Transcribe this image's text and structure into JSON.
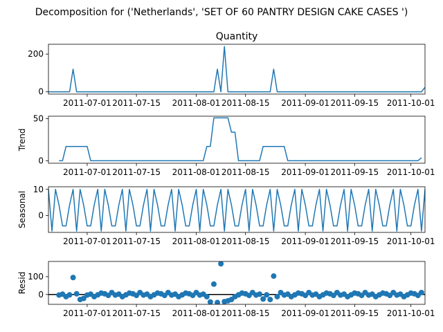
{
  "chart_data": {
    "type": "line",
    "suptitle": "Decomposition for ('Netherlands', 'SET OF 60 PANTRY DESIGN CAKE CASES ')",
    "x_start": "2011-06-20",
    "x_end": "2011-10-05",
    "x_ticks": [
      "2011-07-01",
      "2011-07-15",
      "2011-08-01",
      "2011-08-15",
      "2011-09-01",
      "2011-09-15",
      "2011-10-01"
    ],
    "colors": {
      "line": "#1f77b4",
      "marker": "#1f77b4",
      "zero_line": "#000000"
    },
    "panels": [
      {
        "key": "observed",
        "kind": "line",
        "title": "Quantity",
        "ylabel": "",
        "yticks": [
          0,
          200
        ],
        "ylim": [
          -12,
          252
        ],
        "points": [
          [
            "2011-06-20",
            0
          ],
          [
            "2011-06-26",
            0
          ],
          [
            "2011-06-27",
            120
          ],
          [
            "2011-06-28",
            0
          ],
          [
            "2011-08-06",
            0
          ],
          [
            "2011-08-07",
            120
          ],
          [
            "2011-08-08",
            0
          ],
          [
            "2011-08-09",
            240
          ],
          [
            "2011-08-10",
            0
          ],
          [
            "2011-08-22",
            0
          ],
          [
            "2011-08-23",
            120
          ],
          [
            "2011-08-24",
            0
          ],
          [
            "2011-10-04",
            0
          ],
          [
            "2011-10-05",
            24
          ]
        ]
      },
      {
        "key": "trend",
        "kind": "line",
        "title": "",
        "ylabel": "Trend",
        "yticks": [
          0,
          50
        ],
        "ylim": [
          -3,
          53
        ],
        "points": [
          [
            "2011-06-23",
            0
          ],
          [
            "2011-06-24",
            0
          ],
          [
            "2011-06-25",
            17
          ],
          [
            "2011-06-26",
            17
          ],
          [
            "2011-07-01",
            17
          ],
          [
            "2011-07-02",
            0
          ],
          [
            "2011-08-03",
            0
          ],
          [
            "2011-08-04",
            17
          ],
          [
            "2011-08-05",
            17
          ],
          [
            "2011-08-06",
            51
          ],
          [
            "2011-08-10",
            51
          ],
          [
            "2011-08-11",
            34
          ],
          [
            "2011-08-12",
            34
          ],
          [
            "2011-08-13",
            0
          ],
          [
            "2011-08-19",
            0
          ],
          [
            "2011-08-20",
            17
          ],
          [
            "2011-08-26",
            17
          ],
          [
            "2011-08-27",
            0
          ],
          [
            "2011-10-03",
            0
          ],
          [
            "2011-10-04",
            3.5
          ]
        ]
      },
      {
        "key": "seasonal",
        "kind": "line",
        "title": "",
        "ylabel": "Seasonal",
        "yticks": [
          0,
          10
        ],
        "ylim": [
          -6.5,
          11
        ],
        "pattern": [
          4,
          10,
          -6,
          10,
          4,
          -4,
          -4
        ],
        "pattern_start": "2011-06-19"
      },
      {
        "key": "resid",
        "kind": "scatter",
        "title": "",
        "ylabel": "Resid",
        "yticks": [
          0,
          100
        ],
        "ylim": [
          -55,
          185
        ],
        "outliers": [
          [
            "2011-06-27",
            95
          ],
          [
            "2011-06-29",
            -28
          ],
          [
            "2011-06-30",
            -22
          ],
          [
            "2011-08-05",
            -42
          ],
          [
            "2011-08-06",
            58
          ],
          [
            "2011-08-07",
            -45
          ],
          [
            "2011-08-08",
            172
          ],
          [
            "2011-08-09",
            -40
          ],
          [
            "2011-08-10",
            -35
          ],
          [
            "2011-08-11",
            -28
          ],
          [
            "2011-08-20",
            -25
          ],
          [
            "2011-08-22",
            -28
          ],
          [
            "2011-08-23",
            103
          ],
          [
            "2011-08-24",
            -12
          ]
        ],
        "small_pattern": [
          -3,
          2,
          -12,
          -2,
          8,
          4,
          -5,
          11
        ]
      }
    ]
  }
}
